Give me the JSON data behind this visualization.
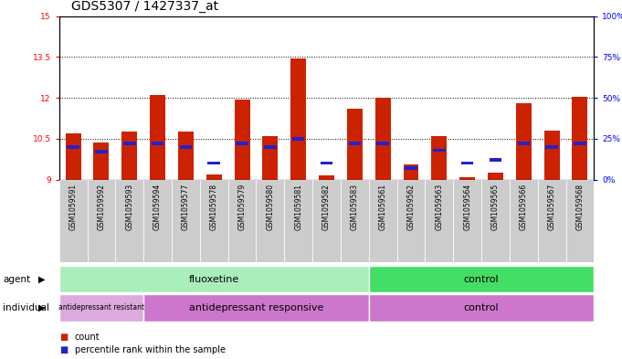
{
  "title": "GDS5307 / 1427337_at",
  "samples": [
    "GSM1059591",
    "GSM1059592",
    "GSM1059593",
    "GSM1059594",
    "GSM1059577",
    "GSM1059578",
    "GSM1059579",
    "GSM1059580",
    "GSM1059581",
    "GSM1059582",
    "GSM1059583",
    "GSM1059561",
    "GSM1059562",
    "GSM1059563",
    "GSM1059564",
    "GSM1059565",
    "GSM1059566",
    "GSM1059567",
    "GSM1059568"
  ],
  "count_values": [
    10.7,
    10.35,
    10.75,
    12.1,
    10.75,
    9.2,
    11.95,
    10.6,
    13.45,
    9.15,
    11.6,
    12.0,
    9.55,
    10.6,
    9.1,
    9.25,
    11.8,
    10.8,
    12.05
  ],
  "percentile_values": [
    20,
    17,
    22,
    22,
    20,
    10,
    22,
    20,
    25,
    10,
    22,
    22,
    7,
    18,
    10,
    12,
    22,
    20,
    22
  ],
  "ylim_left": [
    9,
    15
  ],
  "ylim_right": [
    0,
    100
  ],
  "yticks_left": [
    9,
    10.5,
    12,
    13.5,
    15
  ],
  "yticks_right": [
    0,
    25,
    50,
    75,
    100
  ],
  "ytick_labels_left": [
    "9",
    "10.5",
    "12",
    "13.5",
    "15"
  ],
  "ytick_labels_right": [
    "0%",
    "25%",
    "50%",
    "75%",
    "100%"
  ],
  "bar_color": "#cc2200",
  "percentile_color": "#2222cc",
  "bar_width": 0.55,
  "agent_groups": [
    {
      "label": "fluoxetine",
      "start": 0,
      "end": 11,
      "color": "#aaeebb"
    },
    {
      "label": "control",
      "start": 11,
      "end": 19,
      "color": "#44dd66"
    }
  ],
  "individual_groups": [
    {
      "label": "antidepressant resistant",
      "start": 0,
      "end": 3,
      "color": "#ddaadd"
    },
    {
      "label": "antidepressant responsive",
      "start": 3,
      "end": 11,
      "color": "#cc77cc"
    },
    {
      "label": "control",
      "start": 11,
      "end": 19,
      "color": "#cc77cc"
    }
  ],
  "dotted_gridlines": [
    10.5,
    12,
    13.5
  ],
  "baseline": 9.0,
  "tick_fontsize": 6.5,
  "title_fontsize": 10
}
